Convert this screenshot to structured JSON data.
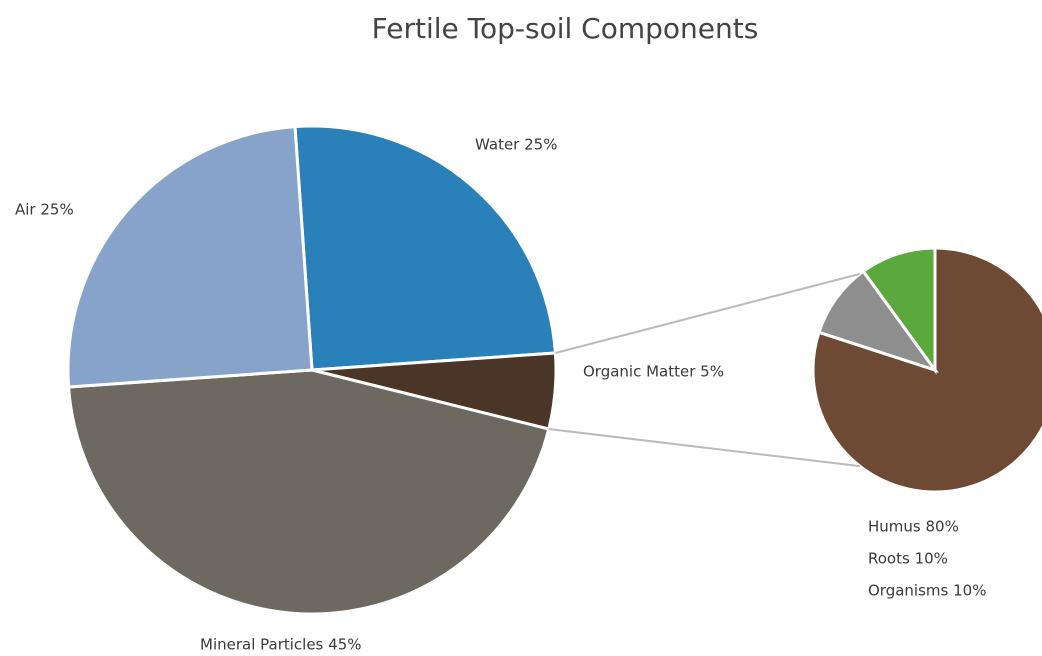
{
  "chart_data": [
    {
      "type": "pie",
      "title": "Fertile Top-soil Components",
      "values": [
        25,
        5,
        45,
        25
      ],
      "value_labels": [
        "Water 25%",
        "Organic Matter 5%",
        "Mineral Particles 45%",
        "Air 25%"
      ],
      "colors": [
        "#2a80b8",
        "#4a3526",
        "#6d6961",
        "#87a3c9"
      ]
    },
    {
      "type": "pie",
      "values": [
        80,
        10,
        10
      ],
      "value_labels": [
        "Humus 80%",
        "Organisms 10%",
        "Roots 10%"
      ],
      "colors": [
        "#6e4a35",
        "#8e8e8e",
        "#5ba83c"
      ]
    }
  ]
}
